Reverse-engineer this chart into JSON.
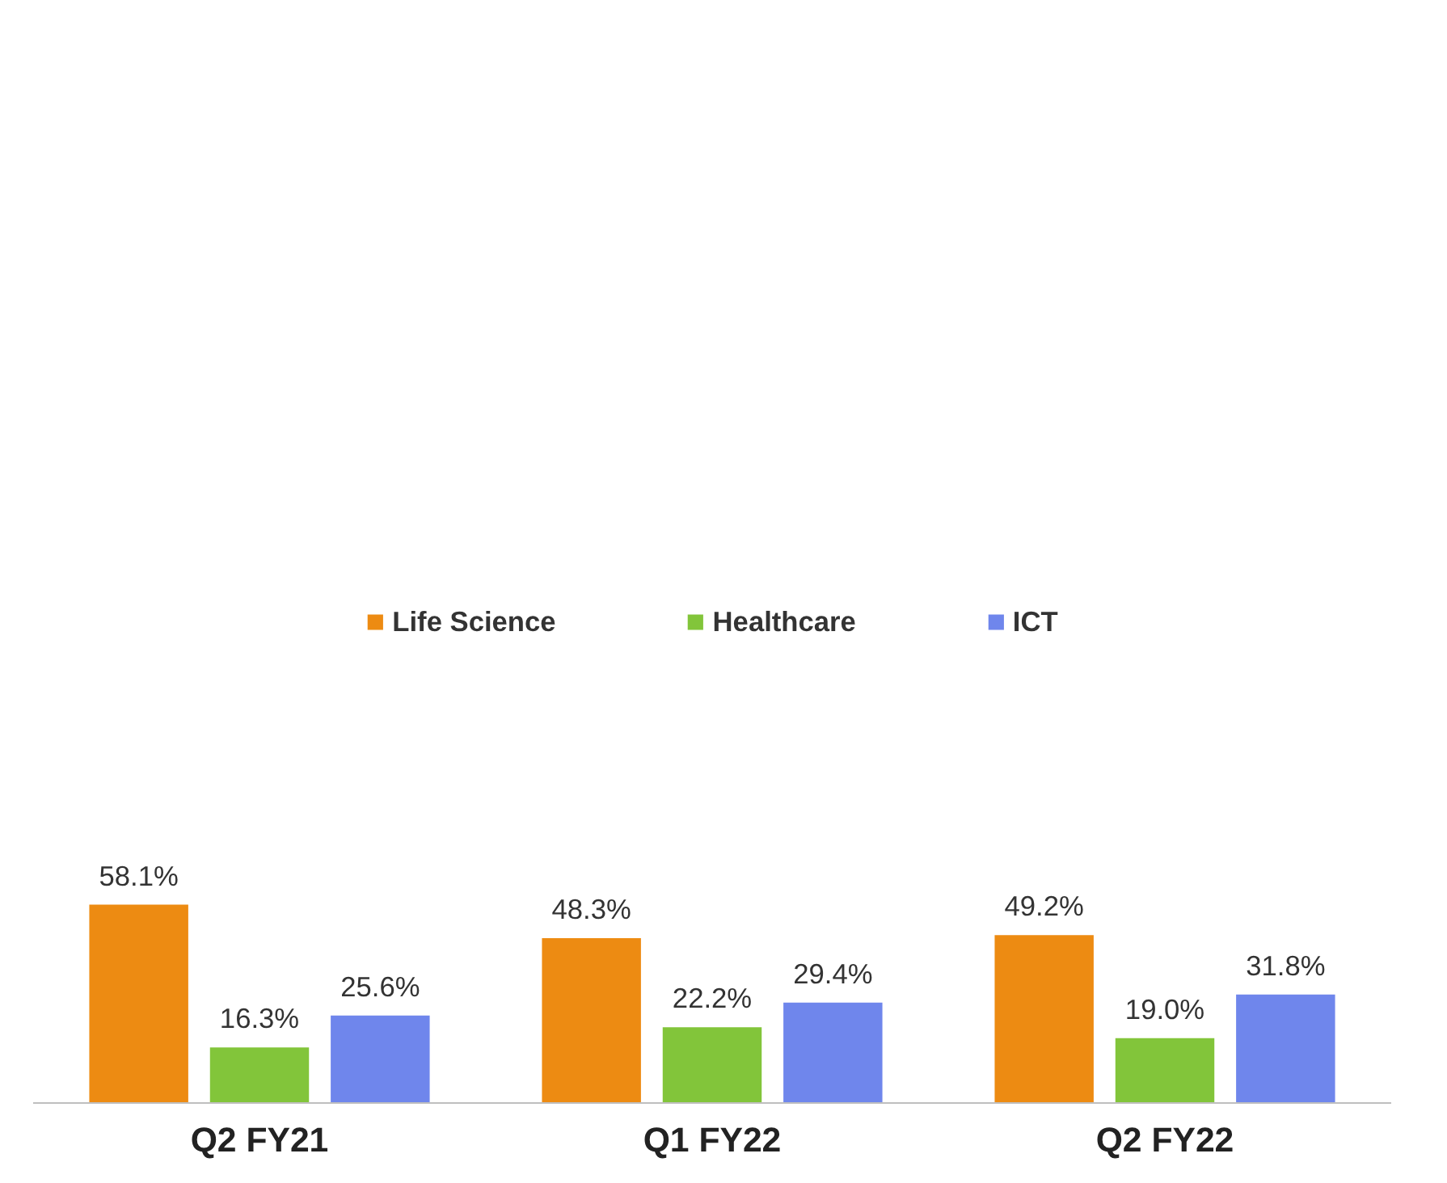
{
  "chart_data": {
    "type": "bar",
    "categories": [
      "Q2 FY21",
      "Q1 FY22",
      "Q2 FY22"
    ],
    "series": [
      {
        "name": "Life Science",
        "color": "#ed8b12",
        "values": [
          58.1,
          48.3,
          49.2
        ],
        "value_labels": [
          "58.1%",
          "48.3%",
          "49.2%"
        ]
      },
      {
        "name": "Healthcare",
        "color": "#82c53a",
        "values": [
          16.3,
          22.2,
          19.0
        ],
        "value_labels": [
          "16.3%",
          "22.2%",
          "19.0%"
        ]
      },
      {
        "name": "ICT",
        "color": "#6f86ec",
        "values": [
          25.6,
          29.4,
          31.8
        ],
        "value_labels": [
          "25.6%",
          "29.4%",
          "31.8%"
        ]
      }
    ],
    "legend": "top",
    "grid": false
  }
}
